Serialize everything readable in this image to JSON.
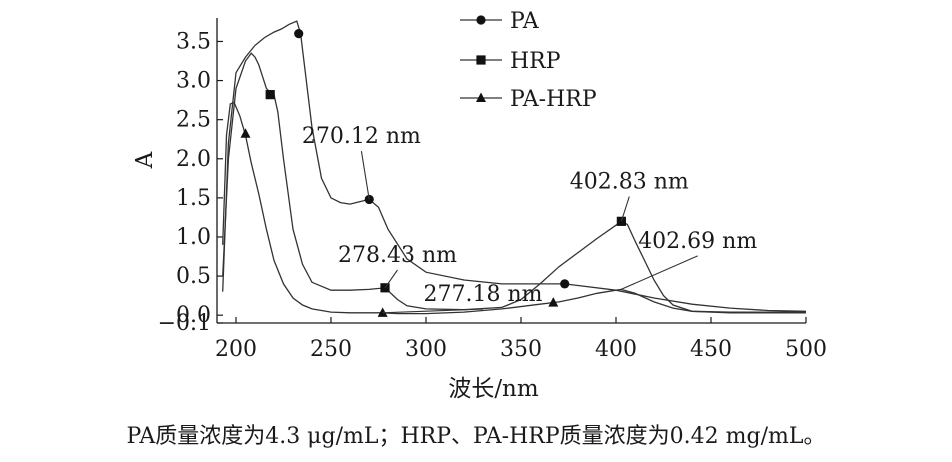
{
  "chart_data": {
    "type": "line",
    "xlabel": "波长/nm",
    "ylabel": "A",
    "xlim": [
      190,
      500
    ],
    "ylim": [
      -0.1,
      3.8
    ],
    "xticks": [
      "200",
      "250",
      "300",
      "350",
      "400",
      "450",
      "500"
    ],
    "yticks": [
      "−0.1",
      "0.0",
      "0.5",
      "1.0",
      "1.5",
      "2.0",
      "2.5",
      "3.0",
      "3.5"
    ],
    "legend_position": "top-center",
    "series": [
      {
        "name": "PA",
        "marker": "circle",
        "x": [
          193,
          196,
          200,
          205,
          210,
          215,
          220,
          224,
          228,
          232,
          234,
          236,
          240,
          245,
          250,
          255,
          260,
          265,
          270.12,
          275,
          280,
          290,
          300,
          320,
          340,
          360,
          373,
          380,
          400,
          420,
          440,
          460,
          480,
          500
        ],
        "y": [
          0.3,
          2.2,
          3.1,
          3.3,
          3.45,
          3.55,
          3.62,
          3.66,
          3.72,
          3.76,
          3.6,
          3.2,
          2.4,
          1.75,
          1.5,
          1.44,
          1.42,
          1.45,
          1.48,
          1.38,
          1.1,
          0.72,
          0.55,
          0.45,
          0.4,
          0.4,
          0.4,
          0.38,
          0.32,
          0.22,
          0.14,
          0.09,
          0.06,
          0.05
        ]
      },
      {
        "name": "HRP",
        "marker": "square",
        "x": [
          193,
          196,
          200,
          205,
          208,
          210,
          212,
          214,
          216,
          218,
          220,
          222,
          225,
          230,
          235,
          240,
          250,
          260,
          270,
          278.43,
          285,
          290,
          300,
          320,
          340,
          350,
          360,
          370,
          380,
          390,
          400,
          402.83,
          406,
          410,
          415,
          420,
          425,
          430,
          440,
          460,
          480,
          500
        ],
        "y": [
          0.5,
          2.0,
          2.9,
          3.25,
          3.35,
          3.3,
          3.2,
          3.05,
          2.9,
          2.85,
          2.82,
          2.6,
          2.0,
          1.1,
          0.65,
          0.42,
          0.32,
          0.32,
          0.33,
          0.35,
          0.2,
          0.12,
          0.08,
          0.07,
          0.1,
          0.2,
          0.4,
          0.62,
          0.8,
          0.98,
          1.15,
          1.2,
          1.16,
          0.95,
          0.7,
          0.45,
          0.25,
          0.13,
          0.05,
          0.04,
          0.04,
          0.04
        ]
      },
      {
        "name": "PA-HRP",
        "marker": "triangle",
        "x": [
          193,
          195,
          197,
          199,
          202,
          205,
          208,
          212,
          216,
          220,
          225,
          230,
          235,
          240,
          245,
          250,
          260,
          270,
          277.18,
          285,
          300,
          320,
          340,
          360,
          370,
          380,
          390,
          400,
          402.69,
          410,
          420,
          430,
          440,
          460,
          480,
          500
        ],
        "y": [
          0.9,
          2.3,
          2.7,
          2.72,
          2.55,
          2.3,
          1.95,
          1.55,
          1.1,
          0.7,
          0.4,
          0.22,
          0.13,
          0.08,
          0.06,
          0.04,
          0.03,
          0.03,
          0.03,
          0.02,
          0.02,
          0.04,
          0.08,
          0.14,
          0.17,
          0.22,
          0.28,
          0.32,
          0.33,
          0.28,
          0.17,
          0.09,
          0.05,
          0.03,
          0.03,
          0.03
        ]
      }
    ],
    "markers": [
      {
        "series": "PA",
        "x": 233,
        "y": 3.6
      },
      {
        "series": "PA",
        "x": 270.12,
        "y": 1.48
      },
      {
        "series": "PA",
        "x": 373,
        "y": 0.4
      },
      {
        "series": "HRP",
        "x": 218,
        "y": 2.82
      },
      {
        "series": "HRP",
        "x": 278.43,
        "y": 0.35
      },
      {
        "series": "HRP",
        "x": 402.83,
        "y": 1.2
      },
      {
        "series": "PA-HRP",
        "x": 205,
        "y": 2.32
      },
      {
        "series": "PA-HRP",
        "x": 277.18,
        "y": 0.03
      },
      {
        "series": "PA-HRP",
        "x": 367,
        "y": 0.16
      }
    ],
    "annotations": [
      {
        "text": "270.12 nm",
        "x": 266,
        "y": 2.2,
        "tx": 270.12,
        "ty": 1.48,
        "anchor": "middle"
      },
      {
        "text": "278.43 nm",
        "x": 285,
        "y": 0.68,
        "tx": 278.43,
        "ty": 0.35,
        "anchor": "middle"
      },
      {
        "text": "277.18 nm",
        "x": 330,
        "y": 0.18,
        "tx": 277.18,
        "ty": 0.03,
        "anchor": "middle"
      },
      {
        "text": "402.83 nm",
        "x": 407,
        "y": 1.62,
        "tx": 402.83,
        "ty": 1.2,
        "anchor": "middle"
      },
      {
        "text": "402.69 nm",
        "x": 443,
        "y": 0.86,
        "tx": 402.69,
        "ty": 0.33,
        "anchor": "middle"
      }
    ]
  },
  "caption": "PA质量浓度为4.3 μg/mL；HRP、PA-HRP质量浓度为0.42 mg/mL。"
}
